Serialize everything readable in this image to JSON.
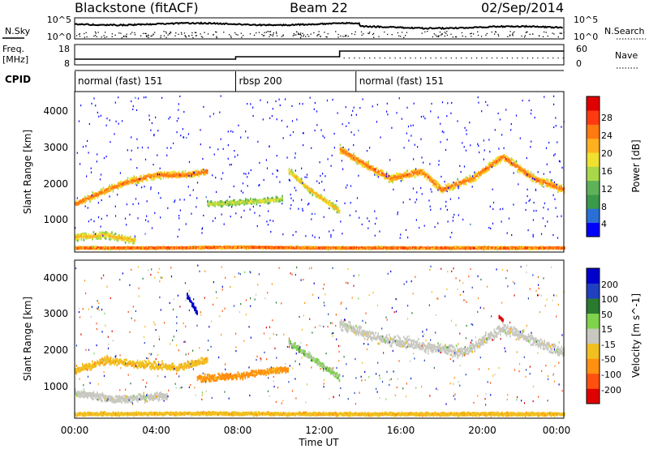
{
  "header": {
    "station": "Blackstone (fitACF)",
    "beam": "Beam 22",
    "date": "02/Sep/2014"
  },
  "noise_panel": {
    "left_label": "N.Sky",
    "right_label": "N.Search",
    "left_ticks": [
      "10^5",
      "10^0"
    ],
    "right_ticks": [
      "10^5",
      "10^0"
    ]
  },
  "freq_panel": {
    "left_label_line1": "Freq.",
    "left_label_line2": "[MHz]",
    "right_label": "Nave",
    "left_ticks": [
      "18",
      "8"
    ],
    "right_ticks": [
      "60",
      "0"
    ]
  },
  "cpid": {
    "label": "CPID",
    "segments": [
      {
        "label": "normal (fast) 151",
        "start": 0,
        "end": 7.9
      },
      {
        "label": "rbsp 200",
        "start": 7.9,
        "end": 13.8
      },
      {
        "label": "normal (fast) 151",
        "start": 13.8,
        "end": 24
      }
    ]
  },
  "power_panel": {
    "ylabel": "Slant Range [km]",
    "yticks": [
      "4000",
      "3000",
      "2000",
      "1000"
    ],
    "colorbar_label": "Power [dB]",
    "colorbar_ticks": [
      "28",
      "24",
      "20",
      "16",
      "12",
      "8",
      "4"
    ],
    "colors": [
      "#0000ff",
      "#2a6fd6",
      "#3a9a4a",
      "#5fb25a",
      "#a8d84a",
      "#f0e030",
      "#ffb020",
      "#ff7a10",
      "#ff3a10",
      "#e00000"
    ]
  },
  "velocity_panel": {
    "ylabel": "Slant Range [km]",
    "yticks": [
      "4000",
      "3000",
      "2000",
      "1000"
    ],
    "colorbar_label": "Velocity [m s^-1]",
    "colorbar_ticks": [
      "200",
      "100",
      "50",
      "15",
      "-15",
      "-50",
      "-100",
      "-200"
    ],
    "colors": [
      "#0000cc",
      "#2040c0",
      "#2a7a30",
      "#7fd24a",
      "#c8c8c0",
      "#f0c020",
      "#ff9010",
      "#ff5010",
      "#e00000"
    ]
  },
  "x_axis": {
    "label": "Time UT",
    "ticks": [
      "00:00",
      "04:00",
      "08:00",
      "12:00",
      "16:00",
      "20:00",
      "00:00"
    ]
  },
  "chart_data": [
    {
      "type": "heatmap",
      "title": "Power",
      "xlabel": "Time UT",
      "ylabel": "Slant Range [km]",
      "xlim": [
        0,
        24
      ],
      "ylim": [
        200,
        4600
      ],
      "zlim": [
        0,
        30
      ],
      "colorbar_label": "Power [dB]",
      "bands": [
        {
          "x": [
            0,
            1.2,
            2.5,
            4.0,
            5.5,
            6.5
          ],
          "y": [
            1500,
            1800,
            2100,
            2300,
            2300,
            2400
          ],
          "width": 260,
          "peak_db": 24
        },
        {
          "x": [
            0,
            1.5,
            3.0
          ],
          "y": [
            600,
            650,
            500
          ],
          "width": 250,
          "peak_db": 20
        },
        {
          "x": [
            6.5,
            8.0,
            9.5,
            10.2
          ],
          "y": [
            1500,
            1550,
            1600,
            1650
          ],
          "width": 200,
          "peak_db": 16
        },
        {
          "x": [
            10.5,
            11.5,
            12.5,
            13.0
          ],
          "y": [
            2400,
            1900,
            1500,
            1300
          ],
          "width": 220,
          "peak_db": 20
        },
        {
          "x": [
            13.0,
            14.5,
            15.5,
            17.0,
            18.0,
            19.5,
            21.0,
            22.5,
            24.0
          ],
          "y": [
            3000,
            2500,
            2200,
            2400,
            1900,
            2200,
            2800,
            2200,
            1900
          ],
          "width": 300,
          "peak_db": 24
        },
        {
          "x": [
            0,
            4.0,
            8.0,
            12.0,
            16.0,
            20.0,
            24.0
          ],
          "y": [
            300,
            300,
            320,
            300,
            300,
            300,
            300
          ],
          "width": 90,
          "peak_db": 26
        }
      ]
    },
    {
      "type": "heatmap",
      "title": "Velocity",
      "xlabel": "Time UT",
      "ylabel": "Slant Range [km]",
      "xlim": [
        0,
        24
      ],
      "ylim": [
        200,
        4600
      ],
      "zlim": [
        -200,
        200
      ],
      "colorbar_label": "Velocity [m s^-1]",
      "bands": [
        {
          "x": [
            0,
            1.5,
            3.0,
            5.0,
            6.5
          ],
          "y": [
            1500,
            1800,
            1700,
            1600,
            1800
          ],
          "width": 300,
          "vel": -40
        },
        {
          "x": [
            6.0,
            8.0,
            9.5,
            10.5
          ],
          "y": [
            1300,
            1350,
            1500,
            1550
          ],
          "width": 260,
          "vel": -60
        },
        {
          "x": [
            10.5,
            11.5,
            12.5,
            13.0
          ],
          "y": [
            2300,
            1900,
            1500,
            1300
          ],
          "width": 250,
          "vel": 20
        },
        {
          "x": [
            13.0,
            15.0,
            17.0,
            19.0,
            21.0,
            24.0
          ],
          "y": [
            2800,
            2400,
            2200,
            2000,
            2700,
            2000
          ],
          "width": 420,
          "vel": 0
        },
        {
          "x": [
            0,
            2.0,
            4.5
          ],
          "y": [
            900,
            700,
            800
          ],
          "width": 300,
          "vel": 0
        },
        {
          "x": [
            5.5,
            6.0
          ],
          "y": [
            3600,
            3100
          ],
          "width": 200,
          "vel": 180
        },
        {
          "x": [
            20.8,
            21.0
          ],
          "y": [
            3000,
            2900
          ],
          "width": 120,
          "vel": -200
        },
        {
          "x": [
            0,
            6.0,
            12.0,
            18.0,
            24.0
          ],
          "y": [
            300,
            320,
            300,
            300,
            300
          ],
          "width": 120,
          "vel": -40
        }
      ]
    }
  ]
}
